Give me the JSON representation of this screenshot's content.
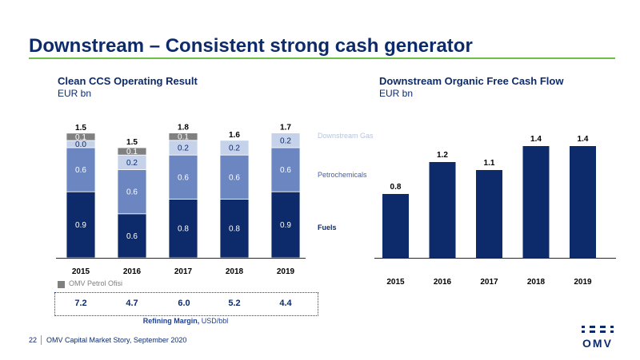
{
  "header": {
    "title": "Downstream – Consistent strong cash generator"
  },
  "left_panel": {
    "title": "Clean CCS Operating Result",
    "unit": "EUR bn"
  },
  "right_panel": {
    "title": "Downstream Organic Free Cash Flow",
    "unit": "EUR bn"
  },
  "legend": {
    "omv_petrol_ofisi": "OMV Petrol Ofisi"
  },
  "refining_margin": {
    "label_bold": "Refining Margin,",
    "label_unit": "USD/bbl",
    "values": [
      "7.2",
      "4.7",
      "6.0",
      "5.2",
      "4.4"
    ]
  },
  "footer": {
    "page_number": "22",
    "text": "OMV Capital Market Story, September 2020"
  },
  "logo": {
    "text": "OMV"
  },
  "colors": {
    "fuels": "#0d2b6b",
    "petrochemicals": "#6b86c0",
    "downstream_gas": "#c5d2ea",
    "omv_petrol_ofisi": "#808080",
    "fcf": "#0d2b6b",
    "accent": "#6cc04a"
  },
  "chart_data": [
    {
      "type": "bar",
      "stacked": true,
      "title": "Clean CCS Operating Result",
      "ylabel": "EUR bn",
      "categories": [
        "2015",
        "2016",
        "2017",
        "2018",
        "2019"
      ],
      "series": [
        {
          "name": "Fuels",
          "values": [
            0.9,
            0.6,
            0.8,
            0.8,
            0.9
          ],
          "labels": [
            "0.9",
            "0.6",
            "0.8",
            "0.8",
            "0.9"
          ],
          "color": "#0d2b6b"
        },
        {
          "name": "Petrochemicals",
          "values": [
            0.6,
            0.6,
            0.6,
            0.6,
            0.6
          ],
          "labels": [
            "0.6",
            "0.6",
            "0.6",
            "0.6",
            "0.6"
          ],
          "color": "#6b86c0"
        },
        {
          "name": "Downstream Gas",
          "values": [
            0.0,
            0.2,
            0.2,
            0.2,
            0.2
          ],
          "labels": [
            "0.0",
            "0.2",
            "0.2",
            "0.2",
            "0.2"
          ],
          "color": "#c5d2ea"
        },
        {
          "name": "OMV Petrol Ofisi",
          "values": [
            0.1,
            0.1,
            0.1,
            0,
            0
          ],
          "labels": [
            "0.1",
            "0.1",
            "0.1",
            "",
            ""
          ],
          "color": "#808080"
        }
      ],
      "totals": [
        "1.5",
        "1.5",
        "1.8",
        "1.6",
        "1.7"
      ],
      "legend": [
        "Downstream Gas",
        "Petrochemicals",
        "Fuels",
        "OMV Petrol Ofisi"
      ],
      "legend_position": "right",
      "grid": false
    },
    {
      "type": "bar",
      "title": "Downstream Organic Free Cash Flow",
      "ylabel": "EUR bn",
      "categories": [
        "2015",
        "2016",
        "2017",
        "2018",
        "2019"
      ],
      "values": [
        0.8,
        1.2,
        1.1,
        1.4,
        1.4
      ],
      "labels": [
        "0.8",
        "1.2",
        "1.1",
        "1.4",
        "1.4"
      ],
      "color": "#0d2b6b",
      "grid": false
    }
  ]
}
